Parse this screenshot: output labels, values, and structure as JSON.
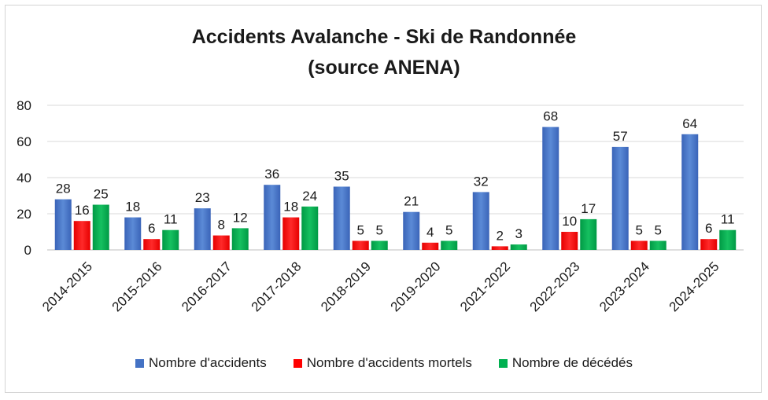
{
  "chart_data": {
    "type": "bar",
    "title_line1": "Accidents Avalanche - Ski de Randonnée",
    "title_line2": "(source ANENA)",
    "categories": [
      "2014-2015",
      "2015-2016",
      "2016-2017",
      "2017-2018",
      "2018-2019",
      "2019-2020",
      "2021-2022",
      "2022-2023",
      "2023-2024",
      "2024-2025"
    ],
    "series": [
      {
        "name": "Nombre d'accidents",
        "color": "#4472c4",
        "values": [
          28,
          18,
          23,
          36,
          35,
          21,
          32,
          68,
          57,
          64
        ]
      },
      {
        "name": "Nombre d'accidents mortels",
        "color": "#ff0000",
        "values": [
          16,
          6,
          8,
          18,
          5,
          4,
          2,
          10,
          5,
          6
        ]
      },
      {
        "name": "Nombre de décédés",
        "color": "#00b050",
        "values": [
          25,
          11,
          12,
          24,
          5,
          5,
          3,
          17,
          5,
          11
        ]
      }
    ],
    "y_ticks": [
      "0",
      "20",
      "40",
      "60",
      "80"
    ],
    "ylim": [
      0,
      80
    ],
    "grid": true,
    "legend_position": "bottom"
  }
}
